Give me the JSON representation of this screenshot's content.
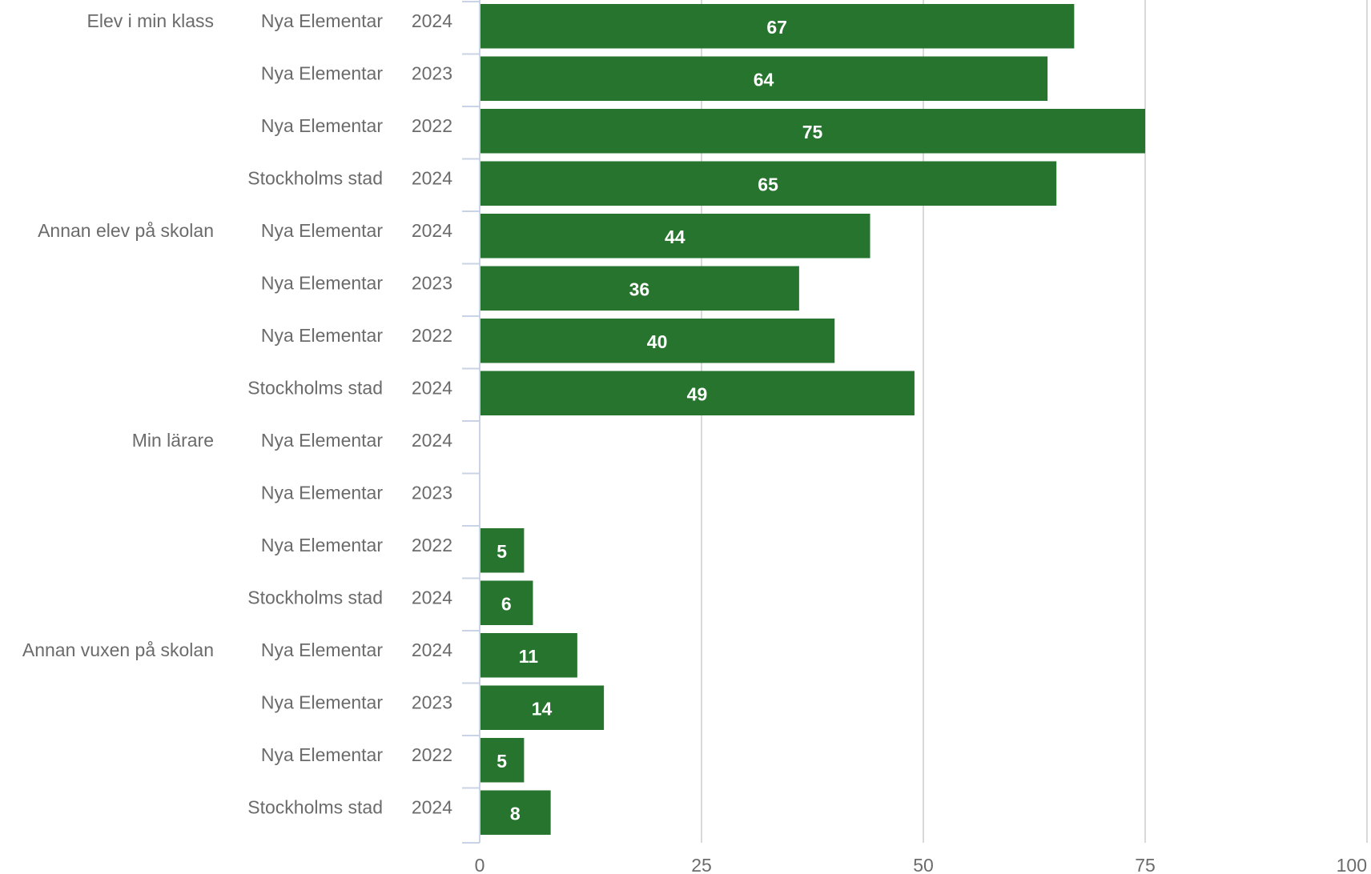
{
  "colors": {
    "bar": "#27742e",
    "label_text": "#6b6b6b",
    "value_text": "#ffffff",
    "grid": "#d9d9d9",
    "axis": "#c9d3e6"
  },
  "chart_data": {
    "type": "bar",
    "orientation": "horizontal",
    "title": "",
    "xlabel": "",
    "ylabel": "",
    "xlim": [
      0,
      100
    ],
    "x_ticks": [
      "0",
      "25",
      "50",
      "75",
      "100"
    ],
    "grid": true,
    "legend": "none",
    "groups": [
      "Elev i min klass",
      "Annan elev på skolan",
      "Min lärare",
      "Annan vuxen på skolan"
    ],
    "rows": [
      {
        "group": "Elev i min klass",
        "source": "Nya Elementar",
        "year": "2024",
        "value": 67
      },
      {
        "group": "",
        "source": "Nya Elementar",
        "year": "2023",
        "value": 64
      },
      {
        "group": "",
        "source": "Nya Elementar",
        "year": "2022",
        "value": 75
      },
      {
        "group": "",
        "source": "Stockholms stad",
        "year": "2024",
        "value": 65
      },
      {
        "group": "Annan elev på skolan",
        "source": "Nya Elementar",
        "year": "2024",
        "value": 44
      },
      {
        "group": "",
        "source": "Nya Elementar",
        "year": "2023",
        "value": 36
      },
      {
        "group": "",
        "source": "Nya Elementar",
        "year": "2022",
        "value": 40
      },
      {
        "group": "",
        "source": "Stockholms stad",
        "year": "2024",
        "value": 49
      },
      {
        "group": "Min lärare",
        "source": "Nya Elementar",
        "year": "2024",
        "value": null
      },
      {
        "group": "",
        "source": "Nya Elementar",
        "year": "2023",
        "value": null
      },
      {
        "group": "",
        "source": "Nya Elementar",
        "year": "2022",
        "value": 5
      },
      {
        "group": "",
        "source": "Stockholms stad",
        "year": "2024",
        "value": 6
      },
      {
        "group": "Annan vuxen på skolan",
        "source": "Nya Elementar",
        "year": "2024",
        "value": 11
      },
      {
        "group": "",
        "source": "Nya Elementar",
        "year": "2023",
        "value": 14
      },
      {
        "group": "",
        "source": "Nya Elementar",
        "year": "2022",
        "value": 5
      },
      {
        "group": "",
        "source": "Stockholms stad",
        "year": "2024",
        "value": 8
      }
    ]
  }
}
